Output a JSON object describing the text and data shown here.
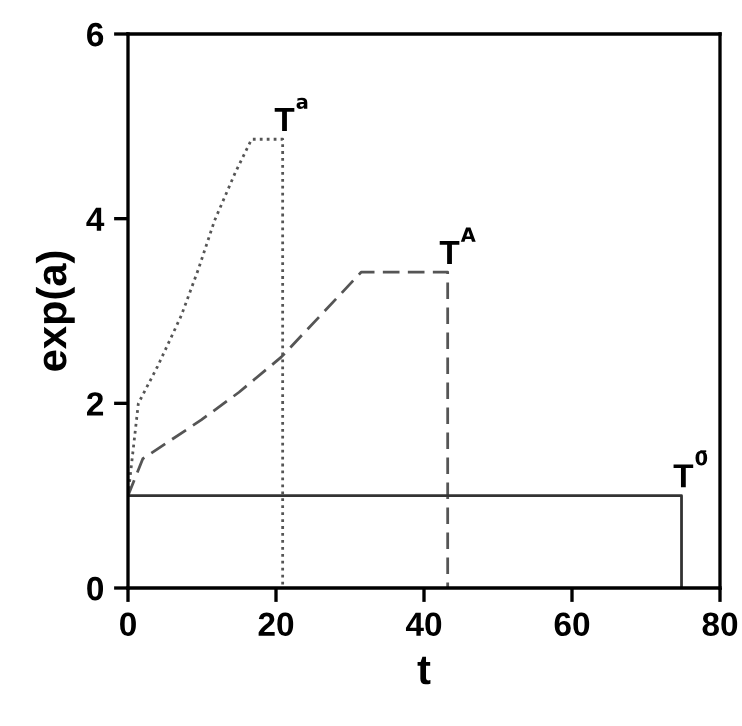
{
  "chart_data": {
    "type": "line",
    "xlabel": "t",
    "ylabel": "exp(a)",
    "xlim": [
      0,
      80
    ],
    "ylim": [
      0,
      6
    ],
    "xticks": [
      0,
      20,
      40,
      60,
      80
    ],
    "yticks": [
      0,
      2,
      4,
      6
    ],
    "grid": false,
    "marker": "none",
    "series": [
      {
        "color": "#555555",
        "line_style": "dotted",
        "x": [
          0,
          1.4,
          4,
          7.2,
          9.5,
          11.7,
          14.5,
          16.7,
          20.9,
          20.9
        ],
        "values": [
          1,
          2.0,
          2.4,
          2.95,
          3.45,
          3.98,
          4.5,
          4.86,
          4.86,
          0
        ]
      },
      {
        "color": "#555555",
        "line_style": "dashed",
        "x": [
          0,
          2.0,
          9.9,
          15,
          20.7,
          26,
          31.5,
          43.2,
          43.2
        ],
        "values": [
          1,
          1.4,
          1.82,
          2.12,
          2.5,
          2.95,
          3.42,
          3.42,
          0
        ]
      },
      {
        "color": "#333333",
        "line_style": "solid",
        "x": [
          0,
          74.8,
          74.8
        ],
        "values": [
          1,
          1,
          0
        ]
      }
    ],
    "annotations": [
      {
        "text": "T$^{a}$",
        "x": 20.9,
        "y": 4.86
      },
      {
        "text": "T$^{A}$",
        "x": 43.2,
        "y": 3.42
      },
      {
        "text": "T$^{0̄}$",
        "x": 74.8,
        "y": 1
      }
    ]
  }
}
